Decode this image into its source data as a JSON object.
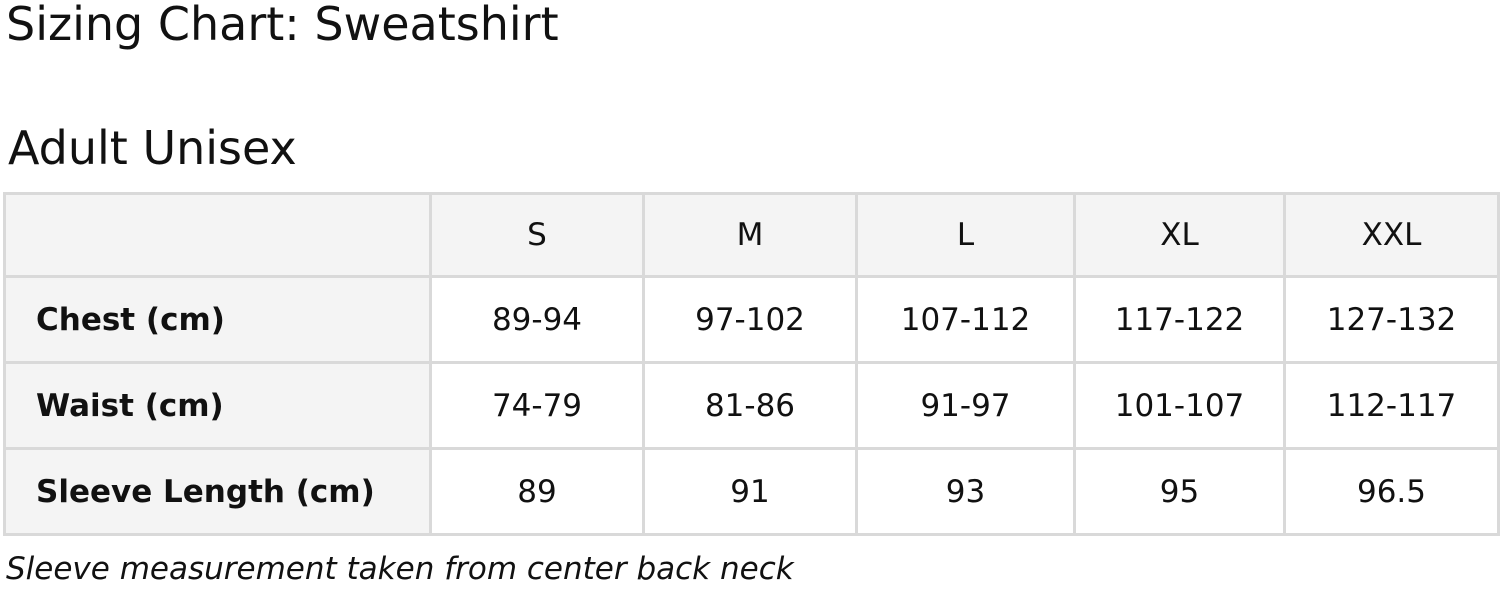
{
  "title": "Sizing Chart: Sweatshirt",
  "subtitle": "Adult Unisex",
  "table": {
    "columns": [
      "",
      "S",
      "M",
      "L",
      "XL",
      "XXL"
    ],
    "rows": [
      {
        "label": "Chest (cm)",
        "values": [
          "89-94",
          "97-102",
          "107-112",
          "117-122",
          "127-132"
        ]
      },
      {
        "label": "Waist (cm)",
        "values": [
          "74-79",
          "81-86",
          "91-97",
          "101-107",
          "112-117"
        ]
      },
      {
        "label": "Sleeve Length (cm)",
        "values": [
          "89",
          "91",
          "93",
          "95",
          "96.5"
        ]
      }
    ]
  },
  "note": "Sleeve measurement taken from center back neck",
  "colors": {
    "header_bg": "#f4f4f4",
    "border": "#d9d9d9"
  }
}
